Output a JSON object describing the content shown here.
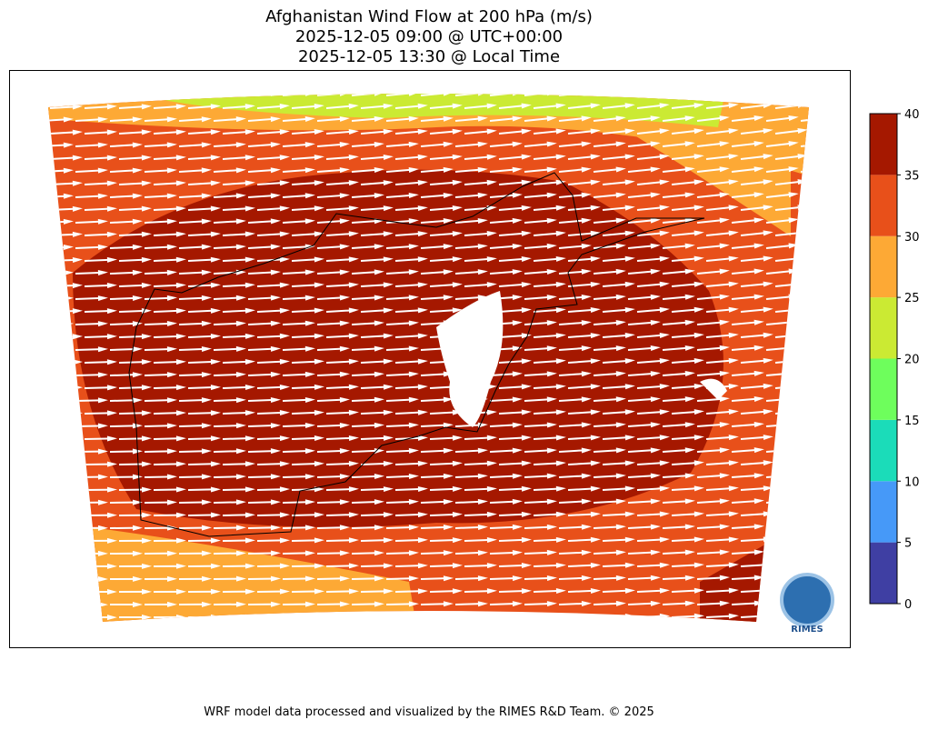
{
  "chart_data": {
    "type": "map",
    "title": "Afghanistan Wind Flow at 200 hPa (m/s)",
    "subtitle": [
      "2025-12-05 09:00 @ UTC+00:00",
      "2025-12-05 13:30 @ Local Time"
    ],
    "colorbar": {
      "lim": [
        0,
        40
      ],
      "ticks": [
        0,
        5,
        10,
        15,
        20,
        25,
        30,
        35,
        40
      ],
      "colors": [
        "#3f3fa3",
        "#4699f8",
        "#1bdcb9",
        "#6efe5c",
        "#cbea33",
        "#fda935",
        "#e8501a",
        "#a51800"
      ]
    },
    "logo": "RIMES",
    "footer": "WRF model data processed and visualized by the RIMES R&D Team. © 2025"
  }
}
